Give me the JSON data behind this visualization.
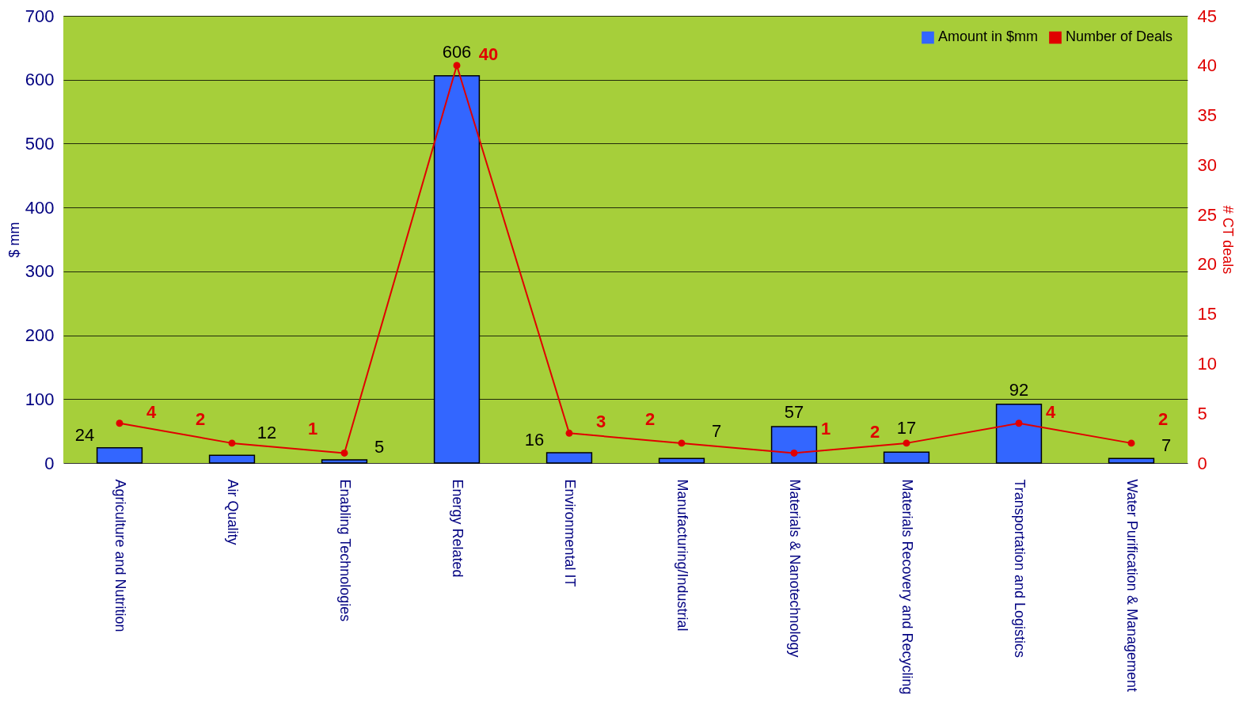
{
  "chart_data": {
    "type": "bar",
    "ylabel": "$ mm",
    "y2label": "# CT deals",
    "categories": [
      "Agriculture and Nutrition",
      "Air Quality",
      "Enabling Technologies",
      "Energy Related",
      "Environmental IT",
      "Manufacturing/Industrial",
      "Materials & Nanotechnology",
      "Materials Recovery and Recycling",
      "Transportation and Logistics",
      "Water Purification & Management"
    ],
    "series": [
      {
        "name": "Amount in $mm",
        "color": "#3366ff",
        "values": [
          24,
          12,
          5,
          606,
          16,
          7,
          57,
          17,
          92,
          7
        ]
      },
      {
        "name": "Number of Deals",
        "type": "line",
        "axis": "y2",
        "color": "#e00000",
        "values": [
          4,
          2,
          1,
          40,
          3,
          2,
          1,
          2,
          4,
          2
        ]
      }
    ],
    "ylim": [
      0,
      700
    ],
    "yticks": [
      0,
      100,
      200,
      300,
      400,
      500,
      600,
      700
    ],
    "y2lim": [
      0,
      45
    ],
    "y2ticks": [
      0,
      5,
      10,
      15,
      20,
      25,
      30,
      35,
      40,
      45
    ],
    "grid": "y",
    "legend": "top right",
    "data_labels": true,
    "marker": "circle"
  }
}
